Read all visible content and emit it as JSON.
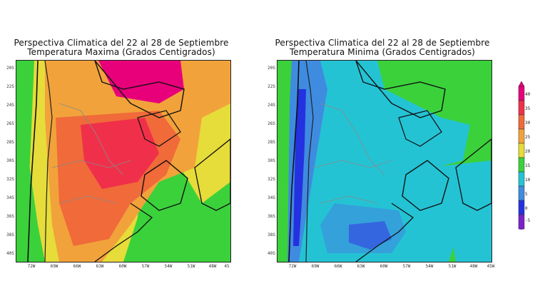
{
  "panels": [
    {
      "title": "Perspectiva Climatica del 22 al 28 de Septiembre",
      "subtitle": "Temperatura Maxima (Grados Centigrados)",
      "lat_ticks": [
        "20S",
        "22S",
        "24S",
        "26S",
        "28S",
        "30S",
        "32S",
        "34S",
        "36S",
        "38S",
        "40S"
      ],
      "lon_ticks": [
        "72W",
        "69W",
        "66W",
        "63W",
        "60W",
        "57W",
        "54W",
        "51W",
        "48W",
        "45"
      ]
    },
    {
      "title": "Perspectiva Climatica del 22 al 28 de Septiembre",
      "subtitle": "Temperatura Minima (Grados Centigrados)",
      "lat_ticks": [
        "20S",
        "22S",
        "24S",
        "26S",
        "28S",
        "30S",
        "32S",
        "34S",
        "36S",
        "38S",
        "40S"
      ],
      "lon_ticks": [
        "72W",
        "69W",
        "66W",
        "63W",
        "60W",
        "57W",
        "54W",
        "51W",
        "48W",
        "45W"
      ]
    }
  ],
  "legend": {
    "labels": [
      "40",
      "35",
      "30",
      "25",
      "20",
      "15",
      "10",
      "5",
      "0",
      "-5"
    ],
    "colors": [
      "#e8007a",
      "#f0304a",
      "#f06a3a",
      "#f2a23a",
      "#e6dc3a",
      "#3bd13b",
      "#24c3d4",
      "#3f8be0",
      "#2431e0",
      "#7a22c8"
    ]
  }
}
